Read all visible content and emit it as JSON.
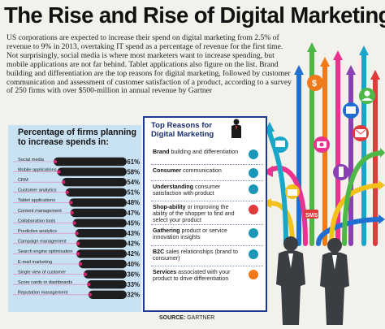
{
  "header": {
    "title": "The Rise and Rise of Digital Marketing",
    "intro": "US corporations are expected to increase their spend on digital marketing from 2.5% of revenue to 9% in 2013, overtaking IT spend as a percentage of revenue for the first time. Not surprisingly, social media is where most marketers want to increase spending, but mobile applications are not far behind. Tablet applications also figure on the list. Brand building and differentiation are the top reasons for digital marketing, followed by customer communication and assessment of customer satisfaction of a product, according to a survey of 250 firms with over $500-million in annual revenue by Gartner"
  },
  "chart_data": {
    "type": "bar",
    "title": "Percentage of firms planning to increase spends in:",
    "categories": [
      "Social media",
      "Mobile applications",
      "CRM",
      "Customer analytics",
      "Tablet applications",
      "Content management",
      "Collaboration tools",
      "Predictive analytics",
      "Campaign management",
      "Search engine optimisation",
      "E-mail marketing",
      "Single view of customer",
      "Score cards or dashboards",
      "Reputation management"
    ],
    "values": [
      61,
      58,
      54,
      51,
      48,
      47,
      45,
      43,
      42,
      42,
      40,
      36,
      33,
      32
    ],
    "value_labels": [
      "61%",
      "58%",
      "54%",
      "51%",
      "48%",
      "47%",
      "45%",
      "43%",
      "42%",
      "42%",
      "40%",
      "36%",
      "33%",
      "32%"
    ],
    "unit": "%",
    "xlim": [
      0,
      61
    ],
    "colors": {
      "bar": "#1e1e1e",
      "background": "#c9e2f3",
      "marker": "#d6246e",
      "guide": "#e07ab4"
    }
  },
  "reasons": {
    "title": "Top Reasons for Digital Marketing",
    "items": [
      {
        "bold": "Brand",
        "rest": " building and differentiation"
      },
      {
        "bold": "Consumer",
        "rest": " communication"
      },
      {
        "bold": "Understanding",
        "rest": " consumer satisfaction with product"
      },
      {
        "bold": "Shop-ability",
        "rest": " or improving the ability of the shopper to find and select your product"
      },
      {
        "bold": "Gathering",
        "rest": " product or service innovation insights"
      },
      {
        "bold": "B2C",
        "rest": " sales relationships (brand to consumer)"
      },
      {
        "bold": "Services",
        "rest": " associated with your product to drive differentiation"
      }
    ]
  },
  "source": {
    "label": "SOURCE:",
    "name": "GARTNER"
  },
  "art": {
    "icons": [
      "dollar-icon",
      "user-icon",
      "camera-icon",
      "tv-icon",
      "phone-icon",
      "email-icon",
      "monitor-icon",
      "briefcase-icon"
    ],
    "sms_label": "SMS",
    "colors": {
      "blue": "#1f6fd1",
      "orange": "#f07a1a",
      "green": "#4db848",
      "pink": "#e8338f",
      "purple": "#8a3fb5",
      "teal": "#19a6c8",
      "red": "#e03a3a",
      "yellow": "#f2c21b"
    }
  }
}
